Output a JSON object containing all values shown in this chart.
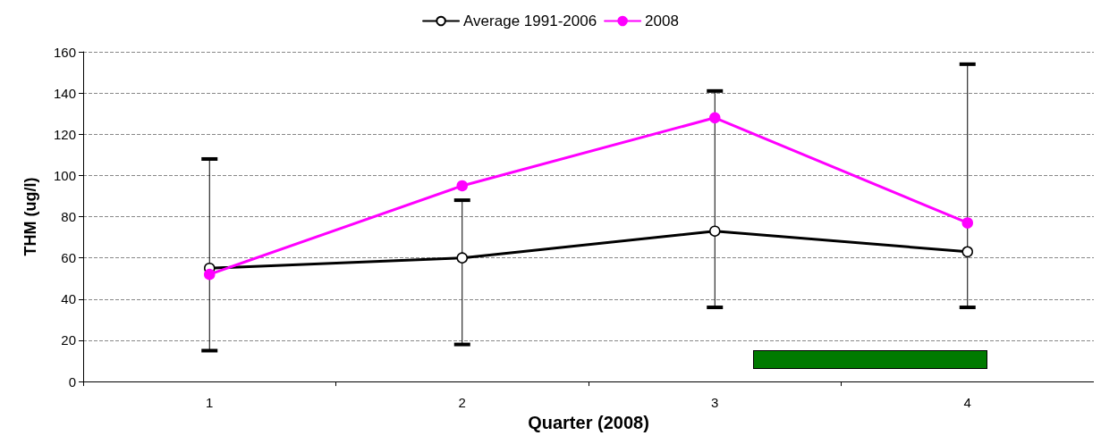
{
  "chart_data": {
    "type": "line",
    "xlabel": "Quarter (2008)",
    "ylabel": "THM (ug/l)",
    "categories": [
      "1",
      "2",
      "3",
      "4"
    ],
    "series": [
      {
        "name": "Average 1991-2006",
        "color": "#000000",
        "values": [
          55,
          60,
          73,
          63
        ],
        "errors": [
          [
            15,
            108
          ],
          [
            18,
            88
          ],
          [
            36,
            141
          ],
          [
            36,
            154
          ]
        ]
      },
      {
        "name": "2008",
        "color": "#ff00ff",
        "values": [
          52,
          95,
          128,
          77
        ]
      }
    ],
    "ylim": [
      0,
      160
    ],
    "yticks": [
      0,
      20,
      40,
      60,
      80,
      100,
      120,
      140,
      160
    ],
    "grid": "y",
    "legend": "top",
    "marker": "circle",
    "line_style": "solid"
  }
}
